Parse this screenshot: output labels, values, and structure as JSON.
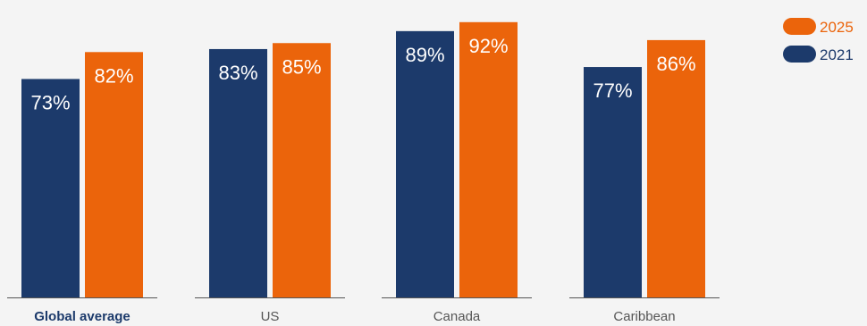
{
  "chart_data": {
    "type": "bar",
    "categories": [
      "Global average",
      "US",
      "Canada",
      "Caribbean"
    ],
    "highlight_category": "Global average",
    "series": [
      {
        "name": "2021",
        "values": [
          73,
          83,
          89,
          77
        ],
        "color": "#1c3a6b"
      },
      {
        "name": "2025",
        "values": [
          82,
          85,
          92,
          86
        ],
        "color": "#eb640b"
      }
    ],
    "value_suffix": "%",
    "ylim": [
      0,
      100
    ],
    "grid": false,
    "legend": {
      "position": "top-right",
      "order": [
        "2025",
        "2021"
      ]
    },
    "axis_color": "#555555"
  }
}
